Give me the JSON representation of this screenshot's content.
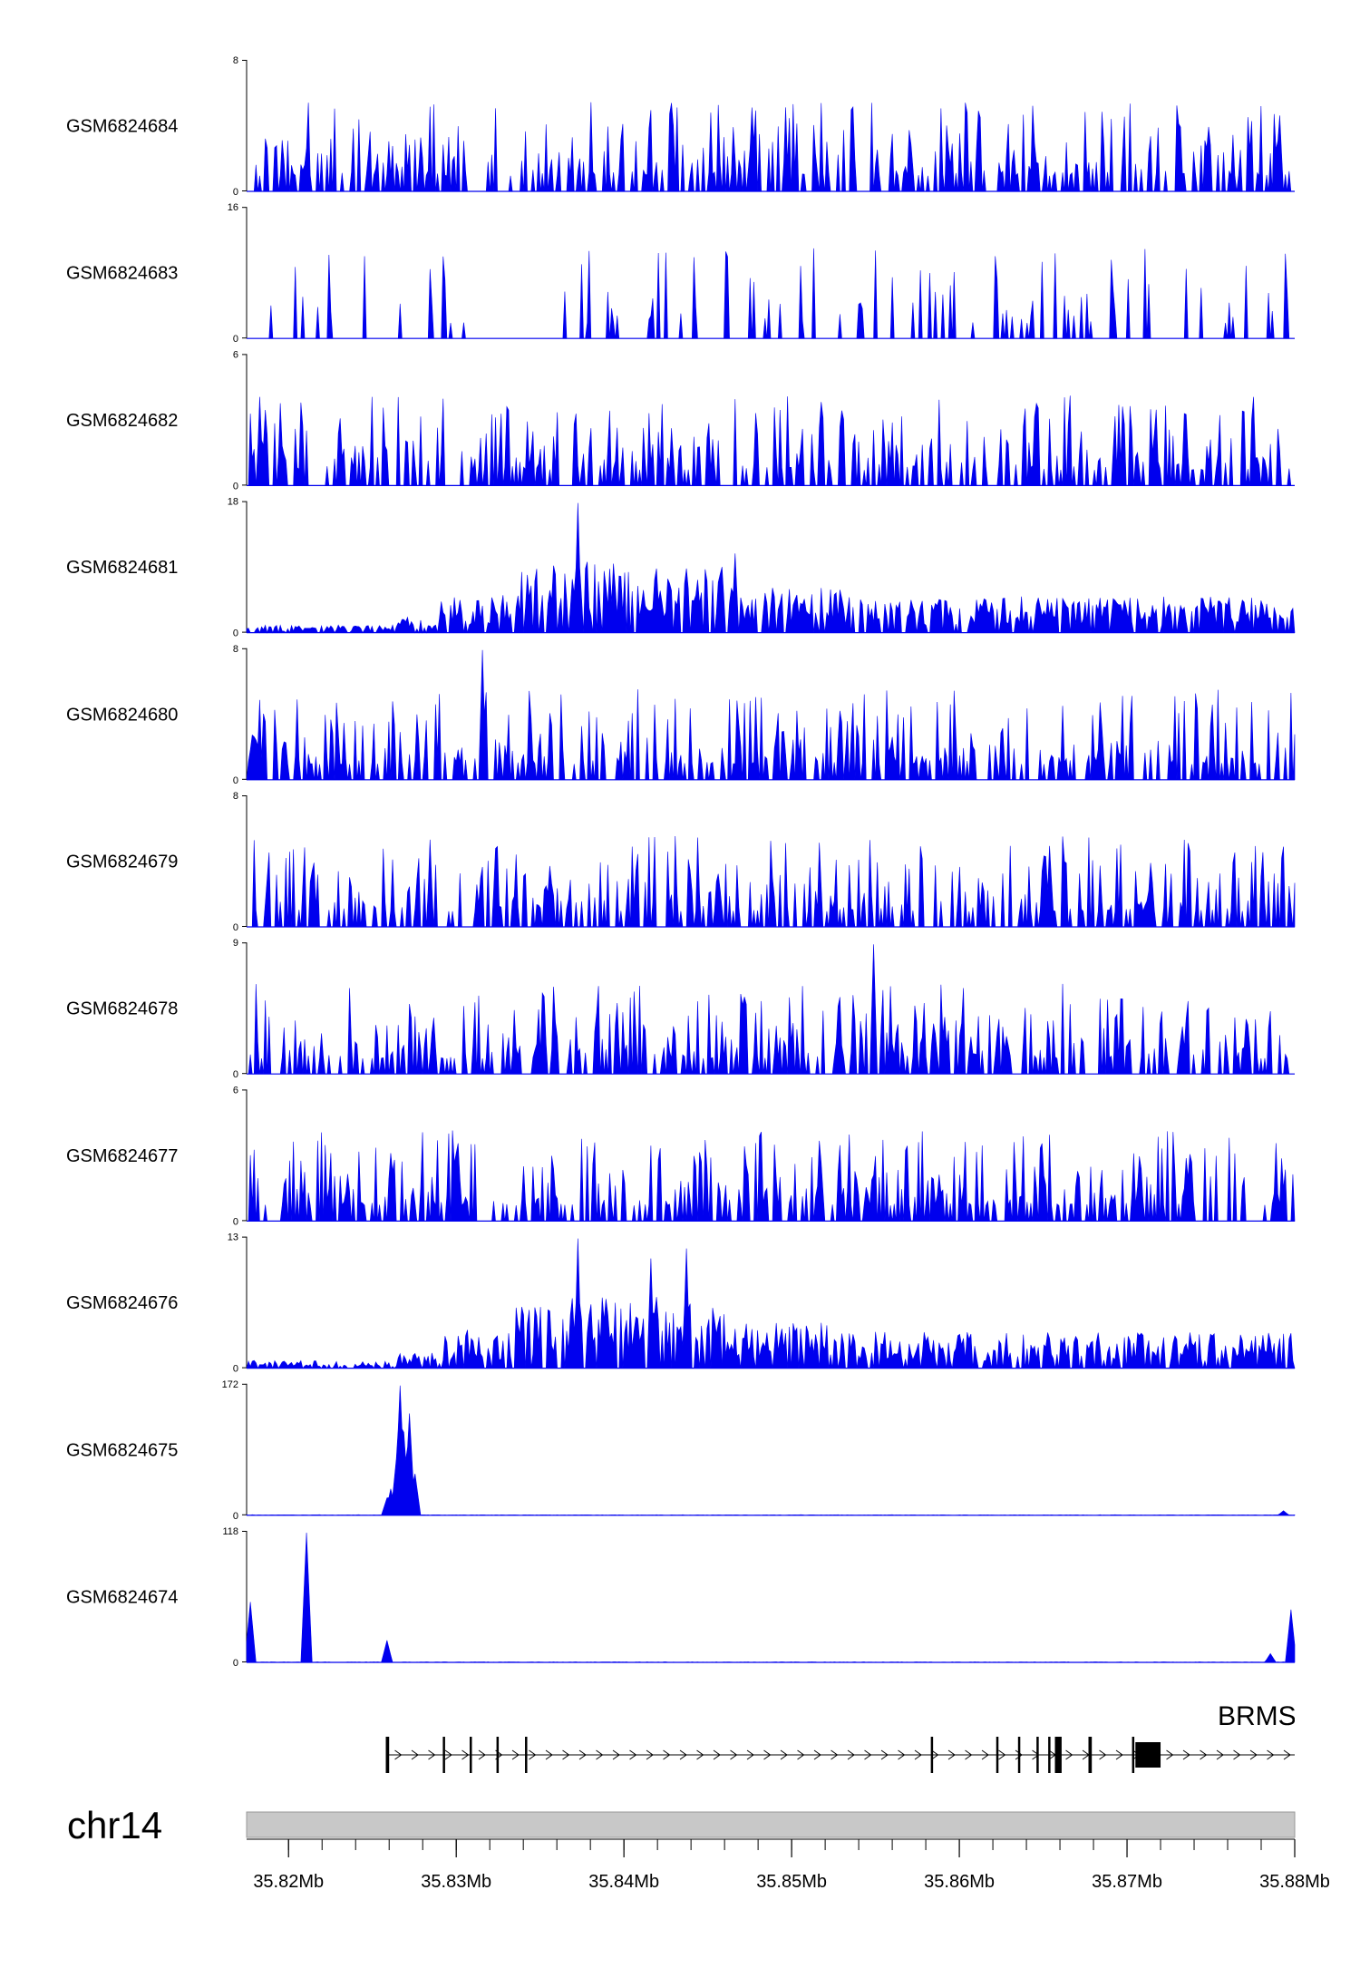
{
  "chart_data": {
    "type": "area",
    "color": "#0000ee",
    "x_range_mb": [
      35.8175,
      35.88
    ],
    "chromosome": "chr14",
    "gene_label": "BRMS",
    "x_ticks": [
      {
        "value": 35.82,
        "label": "35.82Mb"
      },
      {
        "value": 35.83,
        "label": "35.83Mb"
      },
      {
        "value": 35.84,
        "label": "35.84Mb"
      },
      {
        "value": 35.85,
        "label": "35.85Mb"
      },
      {
        "value": 35.86,
        "label": "35.86Mb"
      },
      {
        "value": 35.87,
        "label": "35.87Mb"
      },
      {
        "value": 35.88,
        "label": "35.88Mb"
      }
    ],
    "tracks": [
      {
        "name": "GSM6824684",
        "ymax": 8,
        "ymin": 0,
        "ymax_label": "8",
        "ymin_label": "0",
        "pattern": "noise"
      },
      {
        "name": "GSM6824683",
        "ymax": 16,
        "ymin": 0,
        "ymax_label": "16",
        "ymin_label": "0",
        "pattern": "sparse"
      },
      {
        "name": "GSM6824682",
        "ymax": 6,
        "ymin": 0,
        "ymax_label": "6",
        "ymin_label": "0",
        "pattern": "noise"
      },
      {
        "name": "GSM6824681",
        "ymax": 18,
        "ymin": 0,
        "ymax_label": "18",
        "ymin_label": "0",
        "pattern": "broad",
        "peaks": [
          {
            "x": 35.8373,
            "y": 18
          },
          {
            "x": 35.8466,
            "y": 11
          }
        ]
      },
      {
        "name": "GSM6824680",
        "ymax": 8,
        "ymin": 0,
        "ymax_label": "8",
        "ymin_label": "0",
        "pattern": "noise",
        "peaks": [
          {
            "x": 35.8316,
            "y": 8
          }
        ]
      },
      {
        "name": "GSM6824679",
        "ymax": 8,
        "ymin": 0,
        "ymax_label": "8",
        "ymin_label": "0",
        "pattern": "noise"
      },
      {
        "name": "GSM6824678",
        "ymax": 9,
        "ymin": 0,
        "ymax_label": "9",
        "ymin_label": "0",
        "pattern": "noise",
        "peaks": [
          {
            "x": 35.8549,
            "y": 9
          }
        ]
      },
      {
        "name": "GSM6824677",
        "ymax": 6,
        "ymin": 0,
        "ymax_label": "6",
        "ymin_label": "0",
        "pattern": "noise"
      },
      {
        "name": "GSM6824676",
        "ymax": 13,
        "ymin": 0,
        "ymax_label": "13",
        "ymin_label": "0",
        "pattern": "broad",
        "peaks": [
          {
            "x": 35.8373,
            "y": 13
          },
          {
            "x": 35.8416,
            "y": 11
          },
          {
            "x": 35.8437,
            "y": 12
          }
        ]
      },
      {
        "name": "GSM6824675",
        "ymax": 172,
        "ymin": 0,
        "ymax_label": "172",
        "ymin_label": "0",
        "pattern": "peaks",
        "peaks": [
          {
            "x": 35.8259,
            "y": 23
          },
          {
            "x": 35.8261,
            "y": 35
          },
          {
            "x": 35.8264,
            "y": 75
          },
          {
            "x": 35.8266,
            "y": 172
          },
          {
            "x": 35.8269,
            "y": 110
          },
          {
            "x": 35.8272,
            "y": 135
          },
          {
            "x": 35.8275,
            "y": 55
          },
          {
            "x": 35.8793,
            "y": 6
          }
        ]
      },
      {
        "name": "GSM6824674",
        "ymax": 118,
        "ymin": 0,
        "ymax_label": "118",
        "ymin_label": "0",
        "pattern": "peaks",
        "peaks": [
          {
            "x": 35.8177,
            "y": 55
          },
          {
            "x": 35.8211,
            "y": 118
          },
          {
            "x": 35.8259,
            "y": 20
          },
          {
            "x": 35.8786,
            "y": 8
          },
          {
            "x": 35.8798,
            "y": 48
          }
        ]
      }
    ],
    "gene_model": {
      "name": "BRMS",
      "strand": "+",
      "line_start": 35.8258,
      "line_end": 35.88,
      "exons": [
        {
          "start": 35.8258,
          "end": 35.826
        },
        {
          "start": 35.8292,
          "end": 35.8293
        },
        {
          "start": 35.8308,
          "end": 35.8309
        },
        {
          "start": 35.8324,
          "end": 35.8325
        },
        {
          "start": 35.8341,
          "end": 35.8342
        },
        {
          "start": 35.8583,
          "end": 35.8584
        },
        {
          "start": 35.8622,
          "end": 35.8623
        },
        {
          "start": 35.8635,
          "end": 35.8636
        },
        {
          "start": 35.8646,
          "end": 35.8647
        },
        {
          "start": 35.8653,
          "end": 35.8654
        },
        {
          "start": 35.8657,
          "end": 35.8661
        },
        {
          "start": 35.8677,
          "end": 35.8679
        },
        {
          "start": 35.8703,
          "end": 35.8704
        },
        {
          "start": 35.8705,
          "end": 35.872
        }
      ]
    }
  }
}
